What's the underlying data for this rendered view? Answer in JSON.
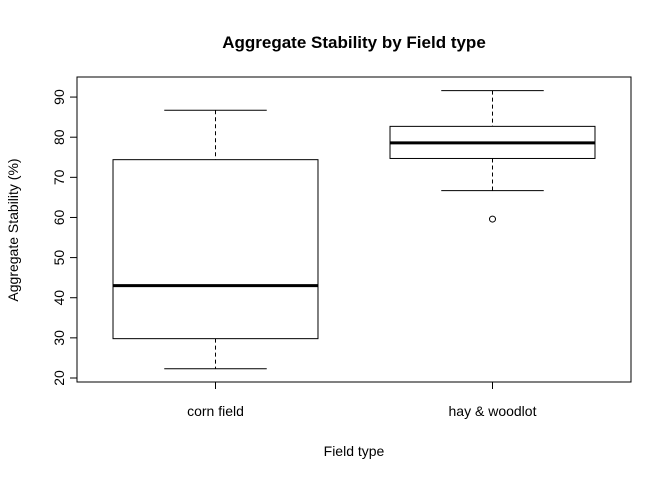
{
  "chart_data": {
    "type": "boxplot",
    "title": "Aggregate Stability by Field type",
    "xlabel": "Field type",
    "ylabel": "Aggregate Stability (%)",
    "categories": [
      "corn field",
      "hay & woodlot"
    ],
    "ylim": [
      19,
      95
    ],
    "yticks": [
      20,
      30,
      40,
      50,
      60,
      70,
      80,
      90
    ],
    "ytick_labels": [
      "20",
      "30",
      "40",
      "50",
      "60",
      "70",
      "80",
      "90"
    ],
    "boxes": [
      {
        "category": "corn field",
        "whisker_low": 22.3,
        "q1": 29.8,
        "median": 43.0,
        "q3": 74.4,
        "whisker_high": 86.7,
        "outliers": []
      },
      {
        "category": "hay & woodlot",
        "whisker_low": 66.7,
        "q1": 74.7,
        "median": 78.6,
        "q3": 82.7,
        "whisker_high": 91.6,
        "outliers": [
          59.6
        ]
      }
    ],
    "grid": false,
    "legend": "none",
    "colors": {
      "box_fill": "#ffffff",
      "stroke": "#000000",
      "background": "#ffffff"
    }
  }
}
